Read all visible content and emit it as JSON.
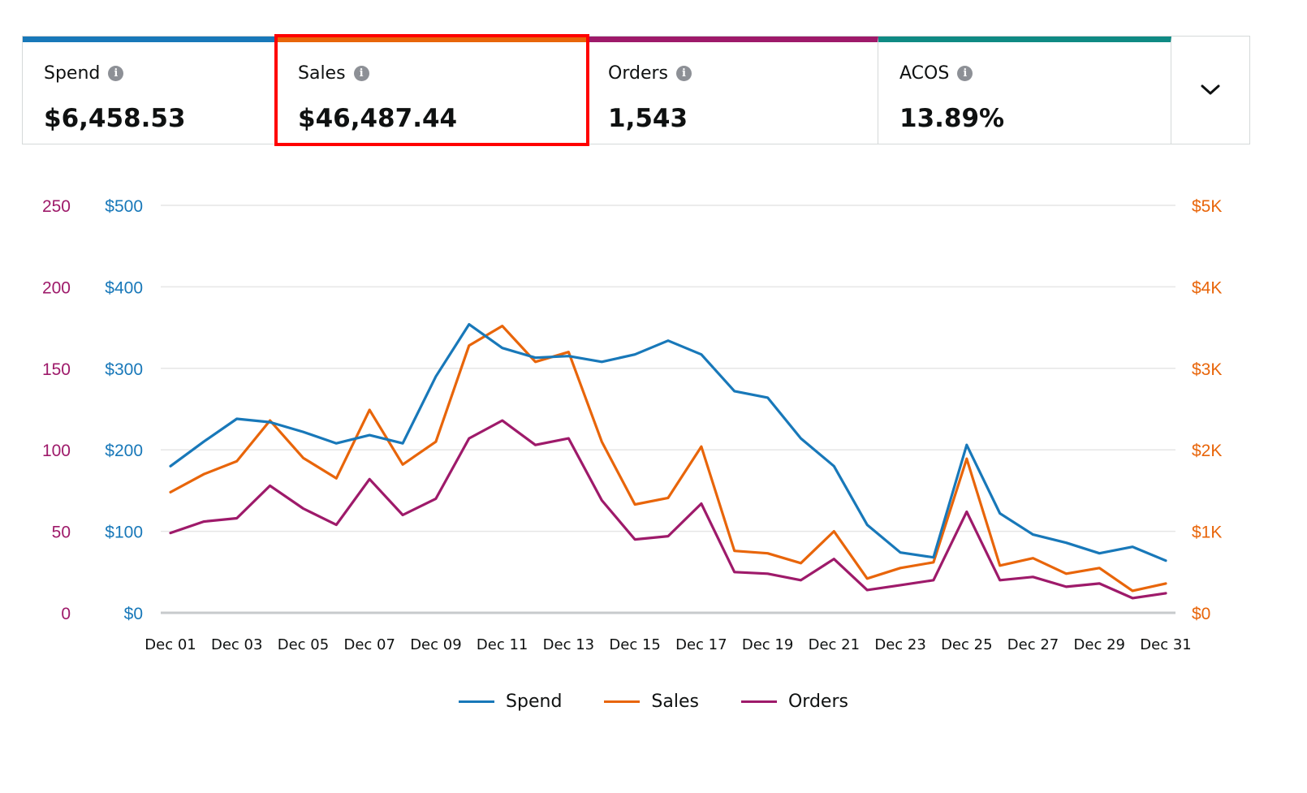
{
  "metrics": {
    "tiles": [
      {
        "label": "Spend",
        "value": "$6,458.53",
        "color": "#1878b9"
      },
      {
        "label": "Sales",
        "value": "$46,487.44",
        "color": "#e8650a"
      },
      {
        "label": "Orders",
        "value": "1,543",
        "color": "#9e1a6a"
      },
      {
        "label": "ACOS",
        "value": "13.89%",
        "color": "#0f8a84"
      }
    ],
    "info_icon": "info-icon",
    "expand_icon": "chevron-down-icon"
  },
  "chart_data": {
    "type": "line",
    "x": [
      "Dec 01",
      "Dec 02",
      "Dec 03",
      "Dec 04",
      "Dec 05",
      "Dec 06",
      "Dec 07",
      "Dec 08",
      "Dec 09",
      "Dec 10",
      "Dec 11",
      "Dec 12",
      "Dec 13",
      "Dec 14",
      "Dec 15",
      "Dec 16",
      "Dec 17",
      "Dec 18",
      "Dec 19",
      "Dec 20",
      "Dec 21",
      "Dec 22",
      "Dec 23",
      "Dec 24",
      "Dec 25",
      "Dec 26",
      "Dec 27",
      "Dec 28",
      "Dec 29",
      "Dec 30",
      "Dec 31"
    ],
    "x_tick_labels": [
      "Dec 01",
      "Dec 03",
      "Dec 05",
      "Dec 07",
      "Dec 09",
      "Dec 11",
      "Dec 13",
      "Dec 15",
      "Dec 17",
      "Dec 19",
      "Dec 21",
      "Dec 23",
      "Dec 25",
      "Dec 27",
      "Dec 29",
      "Dec 31"
    ],
    "series": [
      {
        "name": "Spend",
        "axis": "left_spend",
        "color": "#1878b9",
        "values": [
          180,
          210,
          238,
          234,
          222,
          208,
          218,
          208,
          290,
          354,
          325,
          313,
          315,
          308,
          317,
          334,
          317,
          272,
          264,
          214,
          180,
          108,
          74,
          68,
          206,
          122,
          96,
          86,
          73,
          81,
          64
        ]
      },
      {
        "name": "Sales",
        "axis": "right",
        "color": "#e8650a",
        "values": [
          1480,
          1700,
          1860,
          2360,
          1900,
          1650,
          2490,
          1820,
          2100,
          3280,
          3520,
          3080,
          3200,
          2100,
          1330,
          1410,
          2040,
          760,
          730,
          610,
          1000,
          420,
          550,
          620,
          1890,
          580,
          670,
          480,
          550,
          270,
          360
        ]
      },
      {
        "name": "Orders",
        "axis": "left_orders",
        "color": "#9e1a6a",
        "values": [
          49,
          56,
          58,
          78,
          64,
          54,
          82,
          60,
          70,
          107,
          118,
          103,
          107,
          69,
          45,
          47,
          67,
          25,
          24,
          20,
          33,
          14,
          17,
          20,
          62,
          20,
          22,
          16,
          18,
          9,
          12
        ]
      }
    ],
    "axes": {
      "left_orders": {
        "ticks": [
          "0",
          "50",
          "100",
          "150",
          "200",
          "250"
        ],
        "range": [
          0,
          250
        ],
        "color": "#9e1a6a"
      },
      "left_spend": {
        "ticks": [
          "$0",
          "$100",
          "$200",
          "$300",
          "$400",
          "$500"
        ],
        "range": [
          0,
          500
        ],
        "color": "#1878b9"
      },
      "right": {
        "ticks": [
          "$0",
          "$1K",
          "$2K",
          "$3K",
          "$4K",
          "$5K"
        ],
        "range": [
          0,
          5000
        ],
        "color": "#e8650a"
      }
    },
    "grid": true,
    "legend_position": "bottom-center"
  }
}
